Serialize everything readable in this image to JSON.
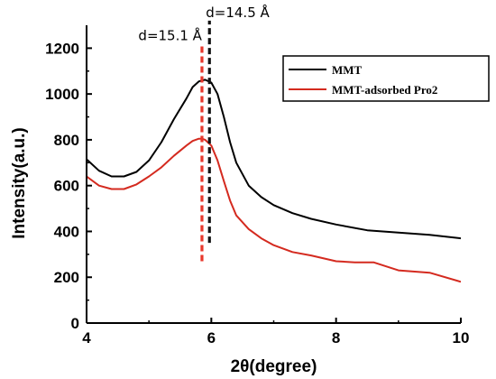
{
  "chart_data": {
    "type": "line",
    "title": "",
    "xlabel": "2θ(degree)",
    "ylabel": "Intensity(a.u.)",
    "xlim": [
      4,
      10
    ],
    "ylim": [
      0,
      1300
    ],
    "x_ticks": [
      4,
      6,
      8,
      10
    ],
    "y_ticks": [
      0,
      200,
      400,
      600,
      800,
      1000,
      1200
    ],
    "grid": false,
    "legend_position": "top-right",
    "series": [
      {
        "name": "MMT",
        "color": "#000000",
        "x": [
          4.0,
          4.2,
          4.4,
          4.6,
          4.8,
          5.0,
          5.2,
          5.4,
          5.6,
          5.7,
          5.8,
          5.9,
          6.0,
          6.1,
          6.2,
          6.3,
          6.4,
          6.6,
          6.8,
          7.0,
          7.3,
          7.6,
          8.0,
          8.5,
          9.0,
          9.5,
          10.0
        ],
        "y": [
          715,
          665,
          640,
          640,
          660,
          710,
          790,
          890,
          980,
          1030,
          1055,
          1062,
          1050,
          1000,
          900,
          790,
          700,
          600,
          550,
          515,
          480,
          455,
          430,
          405,
          395,
          385,
          370
        ]
      },
      {
        "name": "MMT-adsorbed Pro2",
        "color": "#d42a1f",
        "x": [
          4.0,
          4.2,
          4.4,
          4.6,
          4.8,
          5.0,
          5.2,
          5.4,
          5.6,
          5.7,
          5.8,
          5.85,
          5.9,
          6.0,
          6.1,
          6.2,
          6.3,
          6.4,
          6.6,
          6.8,
          7.0,
          7.3,
          7.6,
          8.0,
          8.3,
          8.6,
          9.0,
          9.5,
          10.0
        ],
        "y": [
          640,
          600,
          585,
          585,
          605,
          640,
          680,
          730,
          775,
          795,
          805,
          805,
          800,
          775,
          710,
          620,
          535,
          470,
          410,
          370,
          340,
          310,
          295,
          270,
          265,
          265,
          230,
          220,
          180
        ]
      }
    ],
    "annotations": [
      {
        "text": "d=15.1 Å",
        "x": 5.85,
        "line_color": "#e8372b",
        "line_y": [
          270,
          1220
        ]
      },
      {
        "text": "d=14.5 Å",
        "x": 5.97,
        "line_color": "#111111",
        "line_y": [
          350,
          1320
        ]
      }
    ]
  }
}
